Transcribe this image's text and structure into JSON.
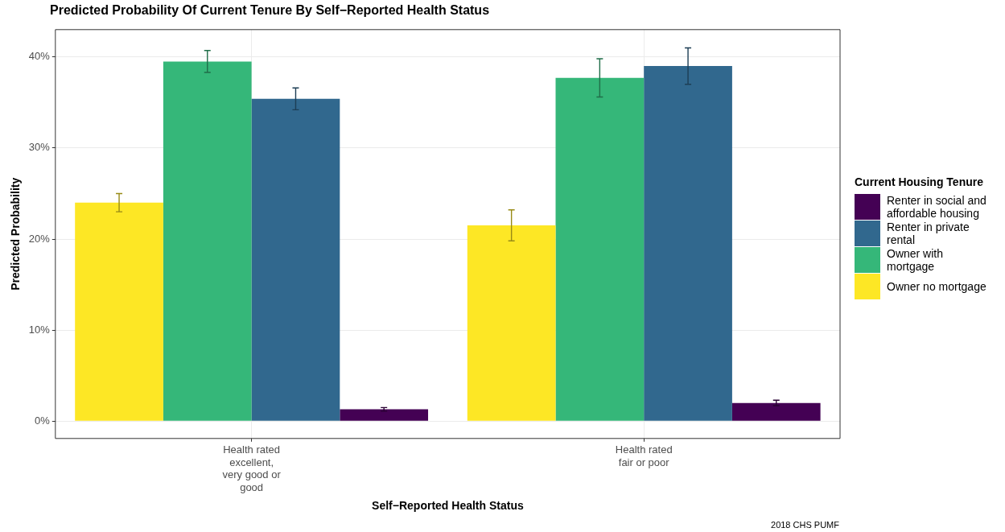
{
  "chart_data": {
    "type": "bar",
    "title": "Predicted Probability Of Current Tenure By Self−Reported Health Status",
    "xlabel": "Self−Reported Health Status",
    "ylabel": "Predicted Probability",
    "legend_title": "Current Housing Tenure",
    "legend": "right",
    "grid": true,
    "categories": [
      "Health rated excellent, very good or good",
      "Health rated fair or poor"
    ],
    "ylim": [
      -1.9,
      43
    ],
    "yticks": [
      {
        "value": 0,
        "label": "0%"
      },
      {
        "value": 10,
        "label": "10%"
      },
      {
        "value": 20,
        "label": "20%"
      },
      {
        "value": 30,
        "label": "30%"
      },
      {
        "value": 40,
        "label": "40%"
      }
    ],
    "series": [
      {
        "name": "Owner no mortgage",
        "color": "#fde725",
        "values": [
          24.0,
          21.5
        ],
        "errors": [
          1.0,
          1.7
        ]
      },
      {
        "name": "Owner with mortgage",
        "color": "#35b779",
        "values": [
          39.5,
          37.7
        ],
        "errors": [
          1.2,
          2.1
        ]
      },
      {
        "name": "Renter in private rental",
        "color": "#31688e",
        "values": [
          35.4,
          39.0
        ],
        "errors": [
          1.2,
          2.0
        ]
      },
      {
        "name": "Renter in social and affordable housing",
        "color": "#440154",
        "values": [
          1.3,
          2.0
        ],
        "errors": [
          0.2,
          0.3
        ]
      }
    ],
    "annotations": [
      "2018 CHS PUMF"
    ]
  }
}
